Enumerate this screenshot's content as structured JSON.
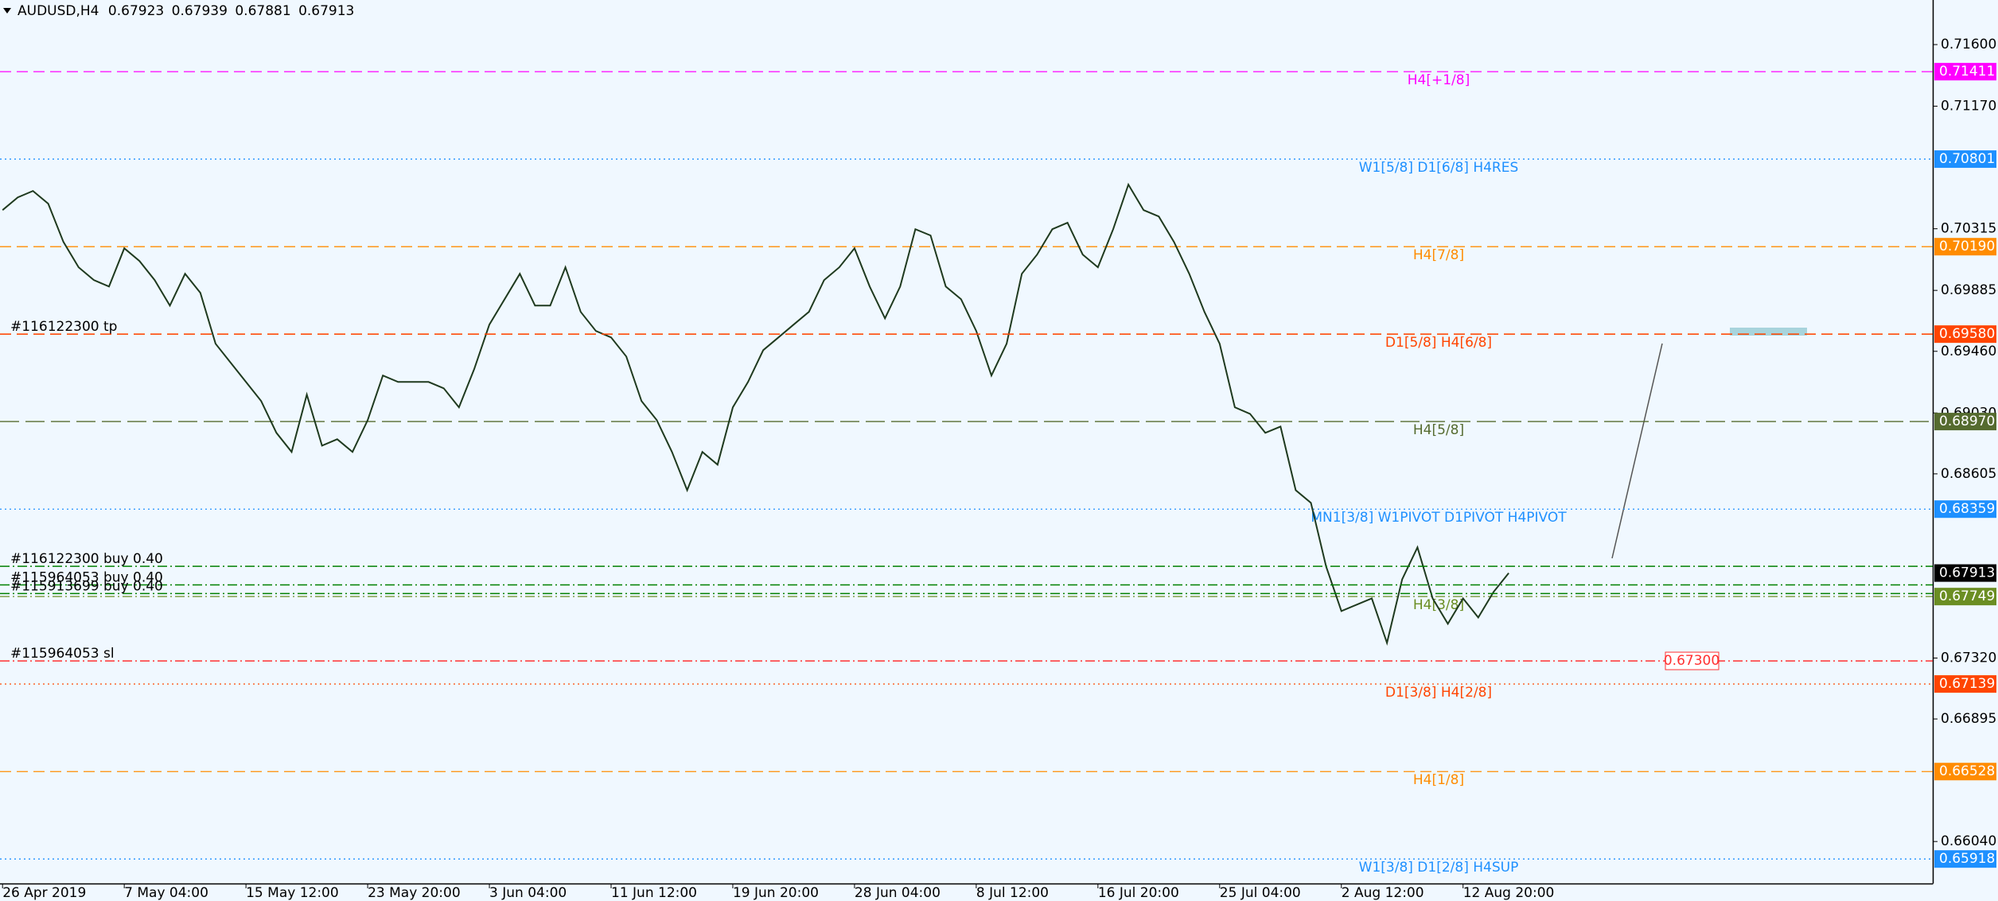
{
  "chart_data": {
    "type": "line",
    "title": "AUDUSD,H4",
    "ohlc": [
      0.67923,
      0.67939,
      0.67881,
      0.67913
    ],
    "color": "#1f3a1f",
    "categories": [
      "26 Apr 2019",
      null,
      null,
      null,
      null,
      null,
      null,
      null,
      "7 May 04:00",
      null,
      null,
      null,
      null,
      null,
      null,
      null,
      "15 May 12:00",
      null,
      null,
      null,
      null,
      null,
      null,
      null,
      "23 May 20:00",
      null,
      null,
      null,
      null,
      null,
      null,
      null,
      "3 Jun 04:00",
      null,
      null,
      null,
      null,
      null,
      null,
      null,
      "11 Jun 12:00",
      null,
      null,
      null,
      null,
      null,
      null,
      null,
      "19 Jun 20:00",
      null,
      null,
      null,
      null,
      null,
      null,
      null,
      "28 Jun 04:00",
      null,
      null,
      null,
      null,
      null,
      null,
      null,
      "8 Jul 12:00",
      null,
      null,
      null,
      null,
      null,
      null,
      null,
      "16 Jul 20:00",
      null,
      null,
      null,
      null,
      null,
      null,
      null,
      "25 Jul 04:00",
      null,
      null,
      null,
      null,
      null,
      null,
      null,
      "2 Aug 12:00",
      null,
      null,
      null,
      null,
      null,
      null,
      null,
      "12 Aug 20:00",
      null,
      null,
      null
    ],
    "values": [
      0.70445,
      0.70534,
      0.70579,
      0.7049,
      0.70223,
      0.70046,
      0.69957,
      0.69912,
      0.70179,
      0.7009,
      0.69957,
      0.69779,
      0.70001,
      0.69868,
      0.69513,
      0.6938,
      0.69246,
      0.69113,
      0.68891,
      0.68758,
      0.69158,
      0.68802,
      0.68847,
      0.68758,
      0.6898,
      0.69291,
      0.69246,
      0.69246,
      0.69246,
      0.69202,
      0.69069,
      0.69335,
      0.69646,
      0.69824,
      0.70001,
      0.69779,
      0.69779,
      0.70046,
      0.69735,
      0.69602,
      0.69557,
      0.69424,
      0.69113,
      0.6898,
      0.68758,
      0.68491,
      0.68758,
      0.68669,
      0.69069,
      0.69246,
      0.69468,
      0.69557,
      0.69646,
      0.69735,
      0.69957,
      0.70046,
      0.70179,
      0.69912,
      0.6969,
      0.69912,
      0.70312,
      0.70268,
      0.69912,
      0.69824,
      0.69602,
      0.69291,
      0.69513,
      0.70001,
      0.70135,
      0.70312,
      0.70357,
      0.70135,
      0.70046,
      0.70312,
      0.70623,
      0.70445,
      0.70401,
      0.70223,
      0.70001,
      0.69735,
      0.69513,
      0.69069,
      0.69024,
      0.68891,
      0.68935,
      0.68491,
      0.68403,
      0.67959,
      0.67648,
      0.67692,
      0.67736,
      0.67426,
      0.6787,
      0.68092,
      0.67736,
      0.67559,
      0.67736,
      0.67603,
      0.67781,
      0.67913
    ],
    "ylim": [
      0.65747,
      0.71911
    ],
    "yticks": [
      {
        "value": 0.716,
        "label": "0.71600"
      },
      {
        "value": 0.7117,
        "label": "0.71170"
      },
      0.70315,
      0.69885,
      {
        "value": 0.6946,
        "label": "0.69460"
      },
      {
        "value": 0.6903,
        "label": "0.69030"
      },
      0.68605,
      {
        "value": 0.6732,
        "label": "0.67320"
      },
      0.66895,
      {
        "value": 0.6604,
        "label": "0.66040"
      }
    ],
    "levels": [
      {
        "label": "H4[+1/8]",
        "price": 0.71411,
        "color": "#ff00ff",
        "style": "dashed"
      },
      {
        "label": "W1[5/8] D1[6/8] H4RES",
        "price": 0.70801,
        "color": "#1e90ff",
        "style": "dotted"
      },
      {
        "label": "H4[7/8]",
        "price": 0.7019,
        "price_label": "0.70190",
        "color": "#ff8c00",
        "style": "dashed"
      },
      {
        "label": "D1[5/8] H4[6/8]",
        "price": 0.6958,
        "price_label": "0.69580",
        "color": "#ff4500",
        "style": "dashed"
      },
      {
        "label": "H4[5/8]",
        "price": 0.6897,
        "price_label": "0.68970",
        "color": "#556b2f",
        "style": "longdash"
      },
      {
        "label": "MN1[3/8] W1PIVOT D1PIVOT H4PIVOT",
        "price": 0.68359,
        "color": "#1e90ff",
        "style": "dotted"
      },
      {
        "label": "H4[3/8]",
        "price": 0.67749,
        "color": "#6b8e23",
        "style": "dashdot"
      },
      {
        "label": "D1[3/8] H4[2/8]",
        "price": 0.67139,
        "color": "#ff4500",
        "style": "dotted"
      },
      {
        "label": "H4[1/8]",
        "price": 0.66528,
        "color": "#ff8c00",
        "style": "dashed"
      },
      {
        "label": "W1[3/8] D1[2/8] H4SUP",
        "price": 0.65918,
        "color": "#1e90ff",
        "style": "dotted"
      }
    ],
    "orders": [
      {
        "label": "#116122300 tp",
        "price": 0.6958,
        "color": "#ff4500",
        "style": "dashed"
      },
      {
        "label": "#116122300 buy 0.40",
        "price": 0.6796,
        "color": "#008000",
        "style": "dashdot"
      },
      {
        "label": "#115964053 buy 0.40",
        "price": 0.6783,
        "color": "#008000",
        "style": "dashdot"
      },
      {
        "label": "#115913699 buy 0.40",
        "price": 0.6777,
        "color": "#008000",
        "style": "dashdot"
      },
      {
        "label": "#115964053 sl",
        "price": 0.673,
        "price_label": "0.67300",
        "color": "#ff3030",
        "style": "dashdot"
      }
    ],
    "last_price": 0.67913
  }
}
